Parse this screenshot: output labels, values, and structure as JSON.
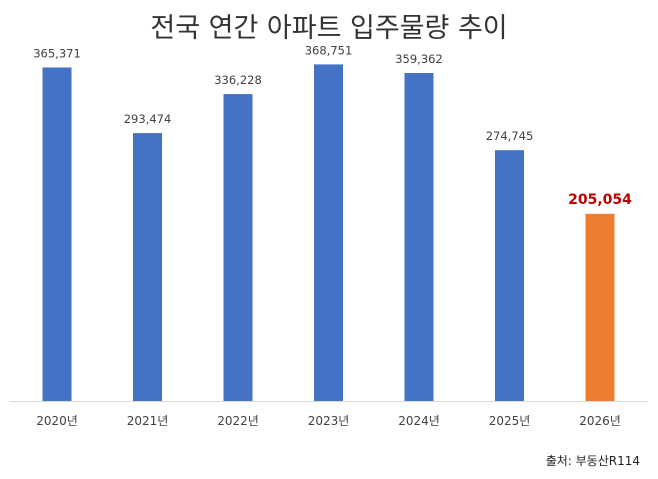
{
  "title": "전국 연간 아파트 입주물량 추이",
  "source": "출처: 부동산R114",
  "colors": {
    "default_bar": "#4472C4",
    "highlight_bar": "#ED7D31",
    "highlight_label": "#C00000",
    "label": "#404040",
    "axis": "#D9D9D9"
  },
  "chart_data": {
    "type": "bar",
    "categories": [
      "2020년",
      "2021년",
      "2022년",
      "2023년",
      "2024년",
      "2025년",
      "2026년"
    ],
    "values": [
      365371,
      293474,
      336228,
      368751,
      359362,
      274745,
      205054
    ],
    "data_labels": [
      "365,371",
      "293,474",
      "336,228",
      "368,751",
      "359,362",
      "274,745",
      "205,054"
    ],
    "highlight_index": 6,
    "ylim": [
      0,
      400000
    ],
    "grid": false,
    "legend": "none"
  }
}
